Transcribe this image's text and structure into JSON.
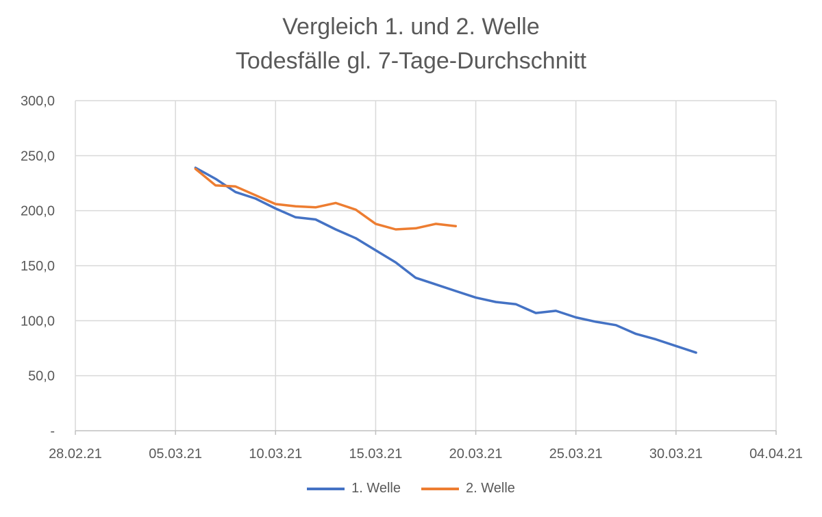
{
  "chart_data": {
    "type": "line",
    "title": "Vergleich 1. und 2. Welle",
    "subtitle": "Todesfälle gl. 7-Tage-Durchschnitt",
    "xlabel": "",
    "ylabel": "",
    "ylim": [
      0,
      300
    ],
    "y_ticks": [
      {
        "value": 0,
        "label": "-"
      },
      {
        "value": 50,
        "label": "50,0"
      },
      {
        "value": 100,
        "label": "100,0"
      },
      {
        "value": 150,
        "label": "150,0"
      },
      {
        "value": 200,
        "label": "200,0"
      },
      {
        "value": 250,
        "label": "250,0"
      },
      {
        "value": 300,
        "label": "300,0"
      }
    ],
    "x_ticks": [
      "28.02.21",
      "05.03.21",
      "10.03.21",
      "15.03.21",
      "20.03.21",
      "25.03.21",
      "30.03.21",
      "04.04.21"
    ],
    "xlim": [
      "2021-02-28",
      "2021-04-04"
    ],
    "grid": true,
    "legend": "bottom",
    "series": [
      {
        "name": "1. Welle",
        "color": "#4472C4",
        "x": [
          "2021-03-06",
          "2021-03-07",
          "2021-03-08",
          "2021-03-09",
          "2021-03-10",
          "2021-03-11",
          "2021-03-12",
          "2021-03-13",
          "2021-03-14",
          "2021-03-15",
          "2021-03-16",
          "2021-03-17",
          "2021-03-18",
          "2021-03-19",
          "2021-03-20",
          "2021-03-21",
          "2021-03-22",
          "2021-03-23",
          "2021-03-24",
          "2021-03-25",
          "2021-03-26",
          "2021-03-27",
          "2021-03-28",
          "2021-03-29",
          "2021-03-30",
          "2021-03-31"
        ],
        "y": [
          239,
          229,
          217,
          211,
          202,
          194,
          192,
          183,
          175,
          164,
          153,
          139,
          133,
          127,
          121,
          117,
          115,
          107,
          109,
          103,
          99,
          96,
          88,
          83,
          77,
          71
        ]
      },
      {
        "name": "2. Welle",
        "color": "#ED7D31",
        "x": [
          "2021-03-06",
          "2021-03-07",
          "2021-03-08",
          "2021-03-09",
          "2021-03-10",
          "2021-03-11",
          "2021-03-12",
          "2021-03-13",
          "2021-03-14",
          "2021-03-15",
          "2021-03-16",
          "2021-03-17",
          "2021-03-18",
          "2021-03-19"
        ],
        "y": [
          238,
          223,
          222,
          214,
          206,
          204,
          203,
          207,
          201,
          188,
          183,
          184,
          188,
          186
        ]
      }
    ]
  }
}
